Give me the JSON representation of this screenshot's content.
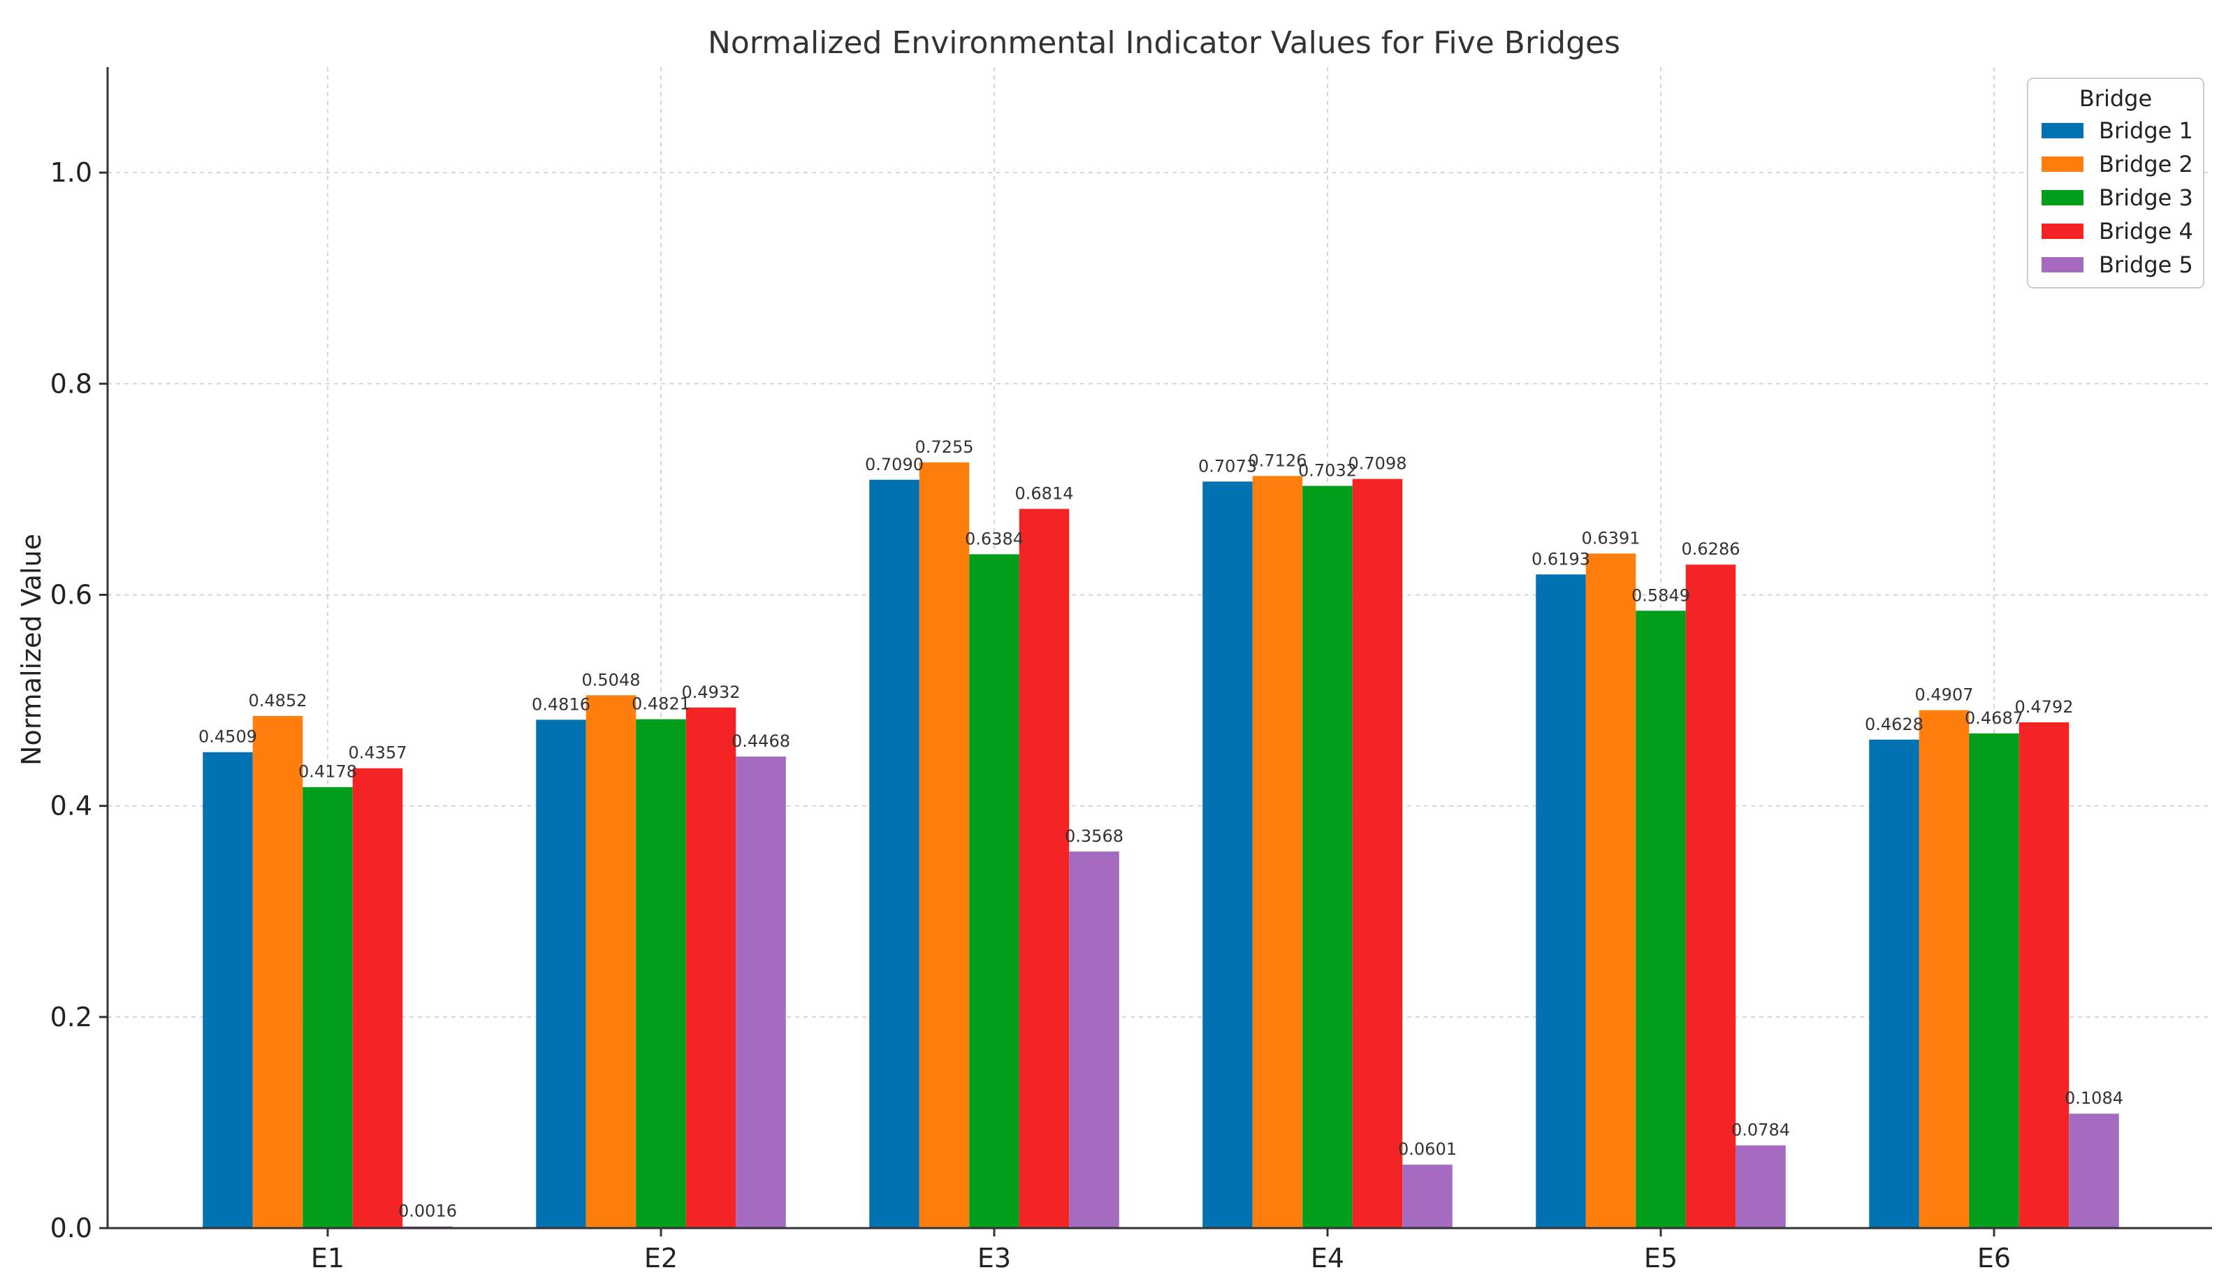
{
  "chart_data": {
    "type": "bar",
    "title": "Normalized Environmental Indicator Values for Five Bridges",
    "xlabel": "",
    "ylabel": "Normalized Value",
    "ylim": [
      0,
      1.1
    ],
    "yticks": [
      0.0,
      0.2,
      0.4,
      0.6,
      0.8,
      1.0
    ],
    "ytick_labels": [
      "0.0",
      "0.2",
      "0.4",
      "0.6",
      "0.8",
      "1.0"
    ],
    "grid": true,
    "legend": {
      "title": "Bridge",
      "position": "top-right"
    },
    "categories": [
      "E1",
      "E2",
      "E3",
      "E4",
      "E5",
      "E6"
    ],
    "series": [
      {
        "name": "Bridge 1",
        "color": "#0072b2",
        "values": [
          0.4509,
          0.4816,
          0.709,
          0.7073,
          0.6193,
          0.4628
        ]
      },
      {
        "name": "Bridge 2",
        "color": "#ff7f0e",
        "values": [
          0.4852,
          0.5048,
          0.7255,
          0.7126,
          0.6391,
          0.4907
        ]
      },
      {
        "name": "Bridge 3",
        "color": "#009e1a",
        "values": [
          0.4178,
          0.4821,
          0.6384,
          0.7032,
          0.5849,
          0.4687
        ]
      },
      {
        "name": "Bridge 4",
        "color": "#f52424",
        "values": [
          0.4357,
          0.4932,
          0.6814,
          0.7098,
          0.6286,
          0.4792
        ]
      },
      {
        "name": "Bridge 5",
        "color": "#a56bc0",
        "values": [
          0.0016,
          0.4468,
          0.3568,
          0.0601,
          0.0784,
          0.1084
        ]
      }
    ],
    "data_labels": [
      [
        "0.4509",
        "0.4816",
        "0.7090",
        "0.7073",
        "0.6193",
        "0.4628"
      ],
      [
        "0.4852",
        "0.5048",
        "0.7255",
        "0.7126",
        "0.6391",
        "0.4907"
      ],
      [
        "0.4178",
        "0.4821",
        "0.6384",
        "0.7032",
        "0.5849",
        "0.4687"
      ],
      [
        "0.4357",
        "0.4932",
        "0.6814",
        "0.7098",
        "0.6286",
        "0.4792"
      ],
      [
        "0.0016",
        "0.4468",
        "0.3568",
        "0.0601",
        "0.0784",
        "0.1084"
      ]
    ]
  }
}
